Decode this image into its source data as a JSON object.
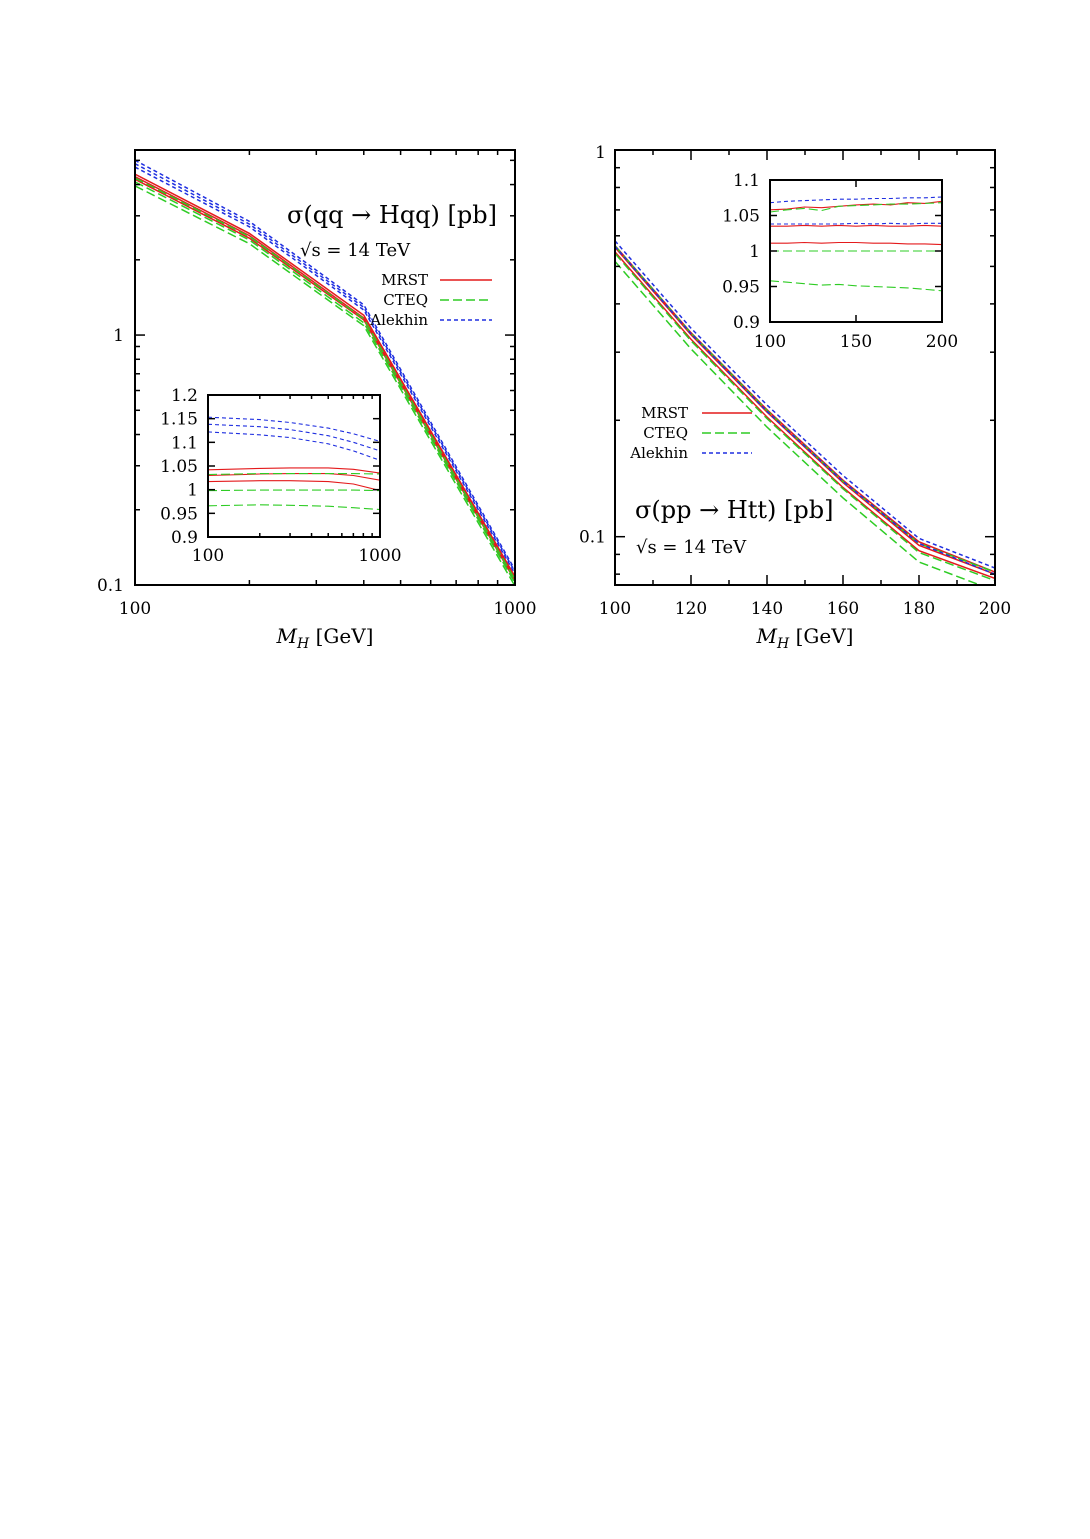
{
  "chart_data": [
    {
      "type": "line",
      "xscale": "log",
      "yscale": "log",
      "xlim": [
        100,
        1000
      ],
      "ylim": [
        0.1,
        5.5
      ],
      "x_ticks": [
        "100",
        "1000"
      ],
      "y_ticks": [
        "0.1",
        "1"
      ],
      "xlabel": "M_H [GeV]",
      "annotation": "σ(qq → Hqq) [pb]",
      "energy_label": "√s = 14 TeV",
      "legend": {
        "position": "top-right",
        "entries": [
          "MRST",
          "CTEQ",
          "Alekhin"
        ]
      },
      "x": [
        100,
        200,
        400,
        1000
      ],
      "series": [
        {
          "name": "MRST",
          "group": "MRST",
          "color": "#e41a1c",
          "values": [
            4.4,
            2.55,
            1.2,
            0.108
          ]
        },
        {
          "group": "MRST",
          "color": "#e41a1c",
          "values": [
            4.3,
            2.5,
            1.17,
            0.106
          ]
        },
        {
          "group": "MRST",
          "color": "#e41a1c",
          "values": [
            4.2,
            2.44,
            1.15,
            0.104
          ]
        },
        {
          "name": "CTEQ",
          "group": "CTEQ",
          "color": "#2ecc24",
          "values": [
            4.25,
            2.48,
            1.16,
            0.105
          ]
        },
        {
          "group": "CTEQ",
          "color": "#2ecc24",
          "values": [
            4.1,
            2.4,
            1.12,
            0.102
          ]
        },
        {
          "group": "CTEQ",
          "color": "#2ecc24",
          "values": [
            3.95,
            2.32,
            1.09,
            0.099
          ]
        },
        {
          "name": "Alekhin",
          "group": "Alekhin",
          "color": "#1f2fe0",
          "values": [
            5.0,
            2.85,
            1.32,
            0.115
          ]
        },
        {
          "group": "Alekhin",
          "color": "#1f2fe0",
          "values": [
            4.85,
            2.78,
            1.29,
            0.113
          ]
        },
        {
          "group": "Alekhin",
          "color": "#1f2fe0",
          "values": [
            4.7,
            2.71,
            1.26,
            0.111
          ]
        }
      ],
      "inset": {
        "xscale": "log",
        "xlim": [
          100,
          1000
        ],
        "ylim": [
          0.9,
          1.2
        ],
        "x_ticks": [
          "100",
          "1000"
        ],
        "y_ticks": [
          "0.9",
          "0.95",
          "1",
          "1.05",
          "1.1",
          "1.15",
          "1.2"
        ],
        "x": [
          100,
          200,
          300,
          500,
          700,
          1000
        ],
        "series": [
          {
            "group": "Alekhin",
            "color": "#1f2fe0",
            "values": [
              1.153,
              1.148,
              1.142,
              1.13,
              1.118,
              1.102
            ]
          },
          {
            "group": "Alekhin",
            "color": "#1f2fe0",
            "values": [
              1.138,
              1.133,
              1.127,
              1.114,
              1.1,
              1.082
            ]
          },
          {
            "group": "Alekhin",
            "color": "#1f2fe0",
            "values": [
              1.122,
              1.116,
              1.11,
              1.097,
              1.082,
              1.062
            ]
          },
          {
            "group": "MRST",
            "color": "#e41a1c",
            "values": [
              1.042,
              1.045,
              1.046,
              1.046,
              1.043,
              1.035
            ]
          },
          {
            "group": "MRST",
            "color": "#e41a1c",
            "values": [
              1.03,
              1.033,
              1.034,
              1.034,
              1.03,
              1.02
            ]
          },
          {
            "group": "MRST",
            "color": "#e41a1c",
            "values": [
              1.017,
              1.019,
              1.019,
              1.017,
              1.012,
              0.998
            ]
          },
          {
            "group": "CTEQ",
            "color": "#2ecc24",
            "values": [
              1.032,
              1.034,
              1.034,
              1.034,
              1.034,
              1.033
            ]
          },
          {
            "group": "CTEQ",
            "color": "#2ecc24",
            "values": [
              0.998,
              0.999,
              0.999,
              0.999,
              0.999,
              0.998
            ]
          },
          {
            "group": "CTEQ",
            "color": "#2ecc24",
            "values": [
              0.966,
              0.968,
              0.967,
              0.965,
              0.962,
              0.958
            ]
          }
        ]
      }
    },
    {
      "type": "line",
      "xscale": "linear",
      "yscale": "log",
      "xlim": [
        100,
        200
      ],
      "ylim": [
        0.075,
        1
      ],
      "x_ticks": [
        "100",
        "120",
        "140",
        "160",
        "180",
        "200"
      ],
      "y_ticks": [
        "0.1",
        "1"
      ],
      "xlabel": "M_H [GeV]",
      "annotation": "σ(pp → Htt) [pb]",
      "energy_label": "√s = 14 TeV",
      "legend": {
        "position": "center-left",
        "entries": [
          "MRST",
          "CTEQ",
          "Alekhin"
        ]
      },
      "x": [
        100,
        120,
        140,
        160,
        180,
        200
      ],
      "series": [
        {
          "name": "MRST",
          "group": "MRST",
          "color": "#e41a1c",
          "values": [
            0.566,
            0.337,
            0.213,
            0.14,
            0.097,
            0.081
          ]
        },
        {
          "group": "MRST",
          "color": "#e41a1c",
          "values": [
            0.56,
            0.333,
            0.21,
            0.138,
            0.095,
            0.08
          ]
        },
        {
          "group": "MRST",
          "color": "#e41a1c",
          "values": [
            0.545,
            0.324,
            0.204,
            0.134,
            0.092,
            0.078
          ]
        },
        {
          "name": "CTEQ",
          "group": "CTEQ",
          "color": "#2ecc24",
          "values": [
            0.565,
            0.336,
            0.212,
            0.139,
            0.096,
            0.081
          ]
        },
        {
          "group": "CTEQ",
          "color": "#2ecc24",
          "values": [
            0.54,
            0.321,
            0.202,
            0.133,
            0.091,
            0.077
          ]
        },
        {
          "group": "CTEQ",
          "color": "#2ecc24",
          "values": [
            0.515,
            0.306,
            0.192,
            0.126,
            0.086,
            0.0725
          ]
        },
        {
          "name": "Alekhin",
          "group": "Alekhin",
          "color": "#1f2fe0",
          "values": [
            0.582,
            0.346,
            0.219,
            0.144,
            0.099,
            0.083
          ]
        },
        {
          "group": "Alekhin",
          "color": "#1f2fe0",
          "values": [
            0.563,
            0.335,
            0.211,
            0.139,
            0.096,
            0.08
          ]
        }
      ],
      "inset": {
        "xscale": "linear",
        "xlim": [
          100,
          200
        ],
        "ylim": [
          0.9,
          1.1
        ],
        "x_ticks": [
          "100",
          "150",
          "200"
        ],
        "y_ticks": [
          "0.9",
          "0.95",
          "1",
          "1.05",
          "1.1"
        ],
        "x": [
          100,
          110,
          120,
          130,
          140,
          150,
          160,
          170,
          180,
          190,
          200
        ],
        "series": [
          {
            "group": "Alekhin",
            "color": "#1f2fe0",
            "values": [
              1.068,
              1.07,
              1.071,
              1.072,
              1.073,
              1.073,
              1.074,
              1.074,
              1.075,
              1.075,
              1.076
            ]
          },
          {
            "group": "MRST",
            "color": "#e41a1c",
            "values": [
              1.058,
              1.059,
              1.062,
              1.061,
              1.063,
              1.065,
              1.066,
              1.065,
              1.068,
              1.067,
              1.07
            ]
          },
          {
            "group": "CTEQ",
            "color": "#2ecc24",
            "values": [
              1.055,
              1.058,
              1.06,
              1.057,
              1.063,
              1.064,
              1.065,
              1.066,
              1.066,
              1.067,
              1.068
            ]
          },
          {
            "group": "Alekhin",
            "color": "#1f2fe0",
            "values": [
              1.038,
              1.038,
              1.038,
              1.038,
              1.038,
              1.039,
              1.038,
              1.039,
              1.038,
              1.039,
              1.039
            ]
          },
          {
            "group": "MRST",
            "color": "#e41a1c",
            "values": [
              1.035,
              1.035,
              1.036,
              1.035,
              1.036,
              1.035,
              1.036,
              1.035,
              1.035,
              1.036,
              1.035
            ]
          },
          {
            "group": "MRST",
            "color": "#e41a1c",
            "values": [
              1.011,
              1.011,
              1.012,
              1.011,
              1.012,
              1.012,
              1.011,
              1.011,
              1.01,
              1.01,
              1.009
            ]
          },
          {
            "group": "CTEQ",
            "color": "#2ecc24",
            "values": [
              1.0,
              1.0,
              1.0,
              1.0,
              1.0,
              1.0,
              1.0,
              1.0,
              1.0,
              1.0,
              1.0
            ]
          },
          {
            "group": "CTEQ",
            "color": "#2ecc24",
            "values": [
              0.958,
              0.956,
              0.954,
              0.952,
              0.953,
              0.951,
              0.95,
              0.949,
              0.948,
              0.946,
              0.944
            ]
          }
        ]
      }
    }
  ]
}
